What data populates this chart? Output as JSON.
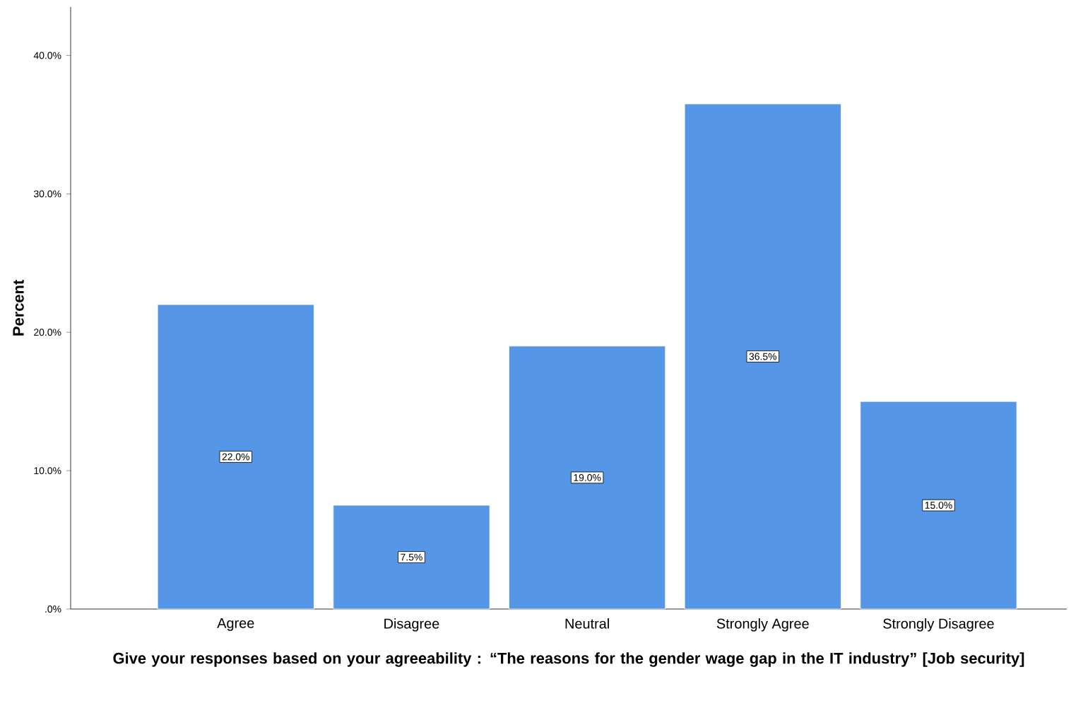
{
  "chart_data": {
    "type": "bar",
    "xlabel": "Give your responses based on your agreeability : “The reasons for the gender wage gap in the IT industry” [Job security]",
    "ylabel": "Percent",
    "categories": [
      "Agree",
      "Disagree",
      "Neutral",
      "Strongly Agree",
      "Strongly Disagree"
    ],
    "values": [
      22.0,
      7.5,
      19.0,
      36.5,
      15.0
    ],
    "value_labels": [
      "22.0%",
      "7.5%",
      "19.0%",
      "36.5%",
      "15.0%"
    ],
    "color": "#5596e6",
    "ylim": [
      0,
      43.5
    ],
    "yticks": [
      {
        "value": 0,
        "label": ".0%"
      },
      {
        "value": 10,
        "label": "10.0%"
      },
      {
        "value": 20,
        "label": "20.0%"
      },
      {
        "value": 30,
        "label": "30.0%"
      },
      {
        "value": 40,
        "label": "40.0%"
      }
    ],
    "grid": false
  }
}
